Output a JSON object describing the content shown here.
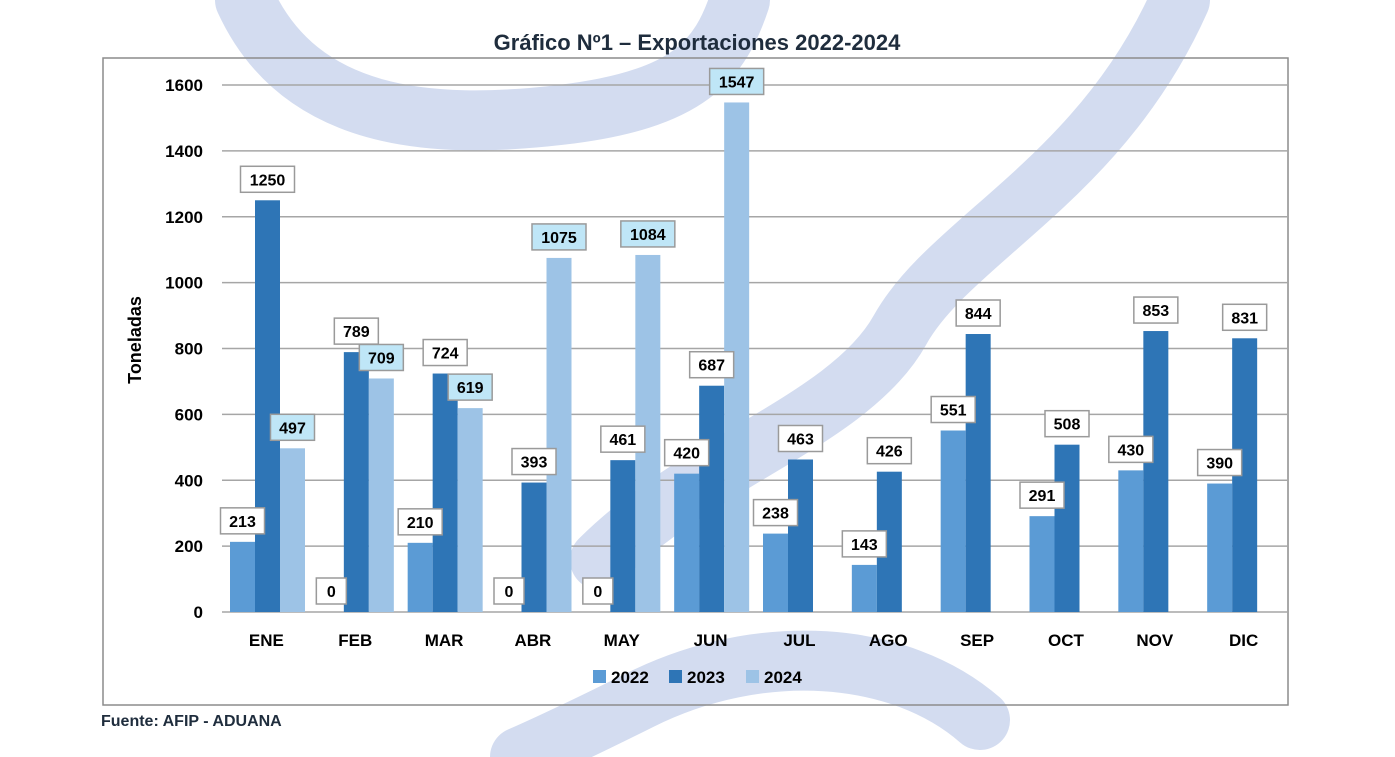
{
  "chart_data": {
    "type": "bar",
    "title": "Gráfico Nº1 – Exportaciones 2022-2024",
    "ylabel": "Toneladas",
    "xlabel": "",
    "ylim": [
      0,
      1600
    ],
    "yticks": [
      0,
      200,
      400,
      600,
      800,
      1000,
      1200,
      1400,
      1600
    ],
    "grid": true,
    "legend_position": "bottom",
    "categories": [
      "ENE",
      "FEB",
      "MAR",
      "ABR",
      "MAY",
      "JUN",
      "JUL",
      "AGO",
      "SEP",
      "OCT",
      "NOV",
      "DIC"
    ],
    "series": [
      {
        "name": "2022",
        "color": "#5b9bd5",
        "values": [
          213,
          0,
          210,
          0,
          0,
          420,
          238,
          143,
          551,
          291,
          430,
          390
        ]
      },
      {
        "name": "2023",
        "color": "#2e75b6",
        "values": [
          1250,
          789,
          724,
          393,
          461,
          687,
          463,
          426,
          844,
          508,
          853,
          831
        ]
      },
      {
        "name": "2024",
        "color": "#9dc3e6",
        "values": [
          497,
          709,
          619,
          1075,
          1084,
          1547,
          null,
          null,
          null,
          null,
          null,
          null
        ]
      }
    ],
    "label_fill_2024": "#bfe6f7",
    "source": "Fuente: AFIP - ADUANA"
  }
}
